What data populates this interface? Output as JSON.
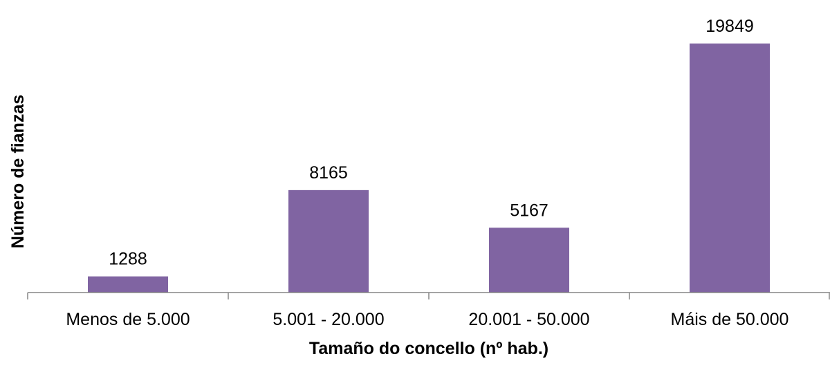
{
  "chart_data": {
    "type": "bar",
    "title": "",
    "xlabel": "Tamaño do concello (nº hab.)",
    "ylabel": "Número de fianzas",
    "categories": [
      "Menos de 5.000",
      "5.001 - 20.000",
      "20.001 - 50.000",
      "Máis de 50.000"
    ],
    "values": [
      1288,
      8165,
      5167,
      19849
    ],
    "data_labels": [
      "1288",
      "8165",
      "5167",
      "19849"
    ],
    "ylim": [
      0,
      21000
    ],
    "grid": false,
    "legend": "none",
    "bar_color": "#8064A2",
    "axis_color": "#868686"
  }
}
